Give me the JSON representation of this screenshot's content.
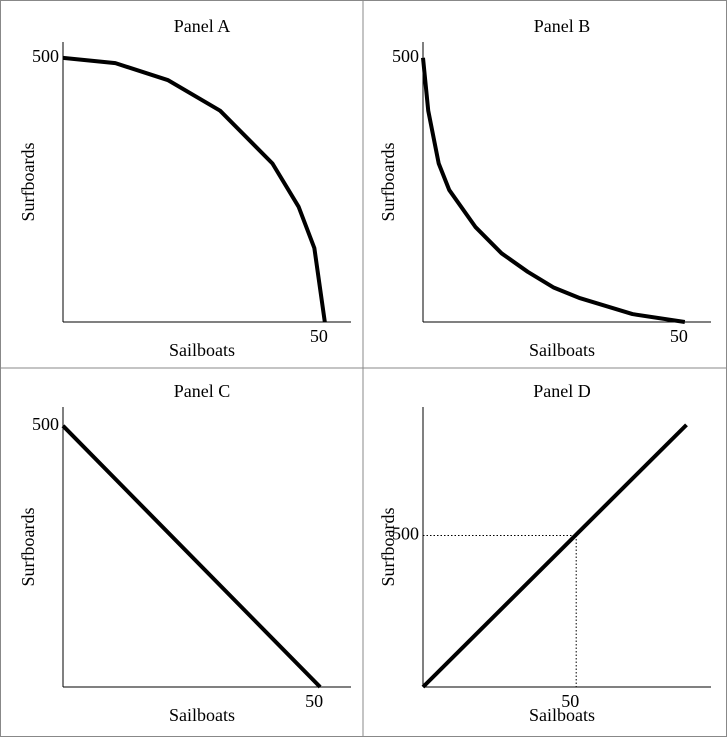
{
  "chart_data": [
    {
      "type": "line",
      "title": "Panel A",
      "xlabel": "Sailboats",
      "ylabel": "Surfboards",
      "x": [
        0,
        10,
        20,
        30,
        40,
        45,
        48,
        50
      ],
      "values": [
        500,
        490,
        458,
        400,
        300,
        218,
        140,
        0
      ],
      "color": "#000000",
      "xlim": [
        0,
        55
      ],
      "ylim": [
        0,
        530
      ],
      "xticks": [
        50
      ],
      "yticks": [
        500
      ]
    },
    {
      "type": "line",
      "title": "Panel B",
      "xlabel": "Sailboats",
      "ylabel": "Surfboards",
      "x": [
        0,
        1,
        3,
        5,
        10,
        15,
        20,
        25,
        30,
        40,
        50
      ],
      "values": [
        500,
        400,
        300,
        250,
        180,
        130,
        95,
        65,
        45,
        15,
        0
      ],
      "color": "#000000",
      "xlim": [
        0,
        55
      ],
      "ylim": [
        0,
        530
      ],
      "xticks": [
        50
      ],
      "yticks": [
        500
      ]
    },
    {
      "type": "line",
      "title": "Panel C",
      "xlabel": "Sailboats",
      "ylabel": "Surfboards",
      "x": [
        0,
        50
      ],
      "values": [
        500,
        0
      ],
      "color": "#000000",
      "xlim": [
        0,
        56
      ],
      "ylim": [
        0,
        536
      ],
      "xticks": [
        50
      ],
      "yticks": [
        500
      ]
    },
    {
      "type": "line",
      "title": "Panel D",
      "xlabel": "Sailboats",
      "ylabel": "Surfboards",
      "x": [
        0,
        86
      ],
      "values": [
        0,
        865
      ],
      "color": "#000000",
      "xlim": [
        0,
        94
      ],
      "ylim": [
        0,
        924
      ],
      "xticks": [
        50
      ],
      "yticks": [
        500
      ],
      "guide": {
        "x": 50,
        "y": 500
      }
    }
  ]
}
